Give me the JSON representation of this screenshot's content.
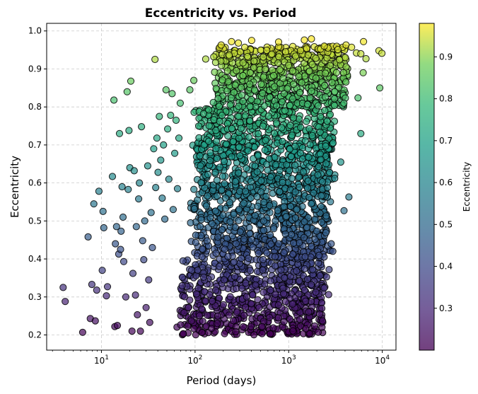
{
  "chart_data": {
    "type": "scatter",
    "title": "Eccentricity vs. Period",
    "xlabel": "Period (days)",
    "ylabel": "Eccentricity",
    "x_scale": "log",
    "xlim": [
      2.6,
      14000
    ],
    "ylim": [
      0.16,
      1.02
    ],
    "x_ticks": [
      {
        "value": 10,
        "label": "10^1"
      },
      {
        "value": 100,
        "label": "10^2"
      },
      {
        "value": 1000,
        "label": "10^3"
      },
      {
        "value": 10000,
        "label": "10^4"
      }
    ],
    "y_ticks": [
      0.2,
      0.3,
      0.4,
      0.5,
      0.6,
      0.7,
      0.8,
      0.9,
      1.0
    ],
    "y_tick_labels": [
      "0.2",
      "0.3",
      "0.4",
      "0.5",
      "0.6",
      "0.7",
      "0.8",
      "0.9",
      "1.0"
    ],
    "grid": true,
    "grid_style": "dashed",
    "colormap": "viridis",
    "marker_alpha": 0.7,
    "marker_edgecolor": "#000000",
    "colorbar": {
      "label": "Eccentricity",
      "range": [
        0.2,
        0.98
      ],
      "ticks": [
        0.3,
        0.4,
        0.5,
        0.6,
        0.7,
        0.8,
        0.9
      ],
      "tick_labels": [
        "0.3",
        "0.4",
        "0.5",
        "0.6",
        "0.7",
        "0.8",
        "0.9"
      ]
    },
    "points": [
      {
        "x": 3.9,
        "y": 0.325
      },
      {
        "x": 4.1,
        "y": 0.288
      },
      {
        "x": 6.3,
        "y": 0.207
      },
      {
        "x": 7.2,
        "y": 0.458
      },
      {
        "x": 7.6,
        "y": 0.243
      },
      {
        "x": 7.9,
        "y": 0.333
      },
      {
        "x": 8.3,
        "y": 0.545
      },
      {
        "x": 8.6,
        "y": 0.237
      },
      {
        "x": 8.9,
        "y": 0.318
      },
      {
        "x": 9.4,
        "y": 0.578
      },
      {
        "x": 10.2,
        "y": 0.37
      },
      {
        "x": 10.4,
        "y": 0.525
      },
      {
        "x": 10.6,
        "y": 0.482
      },
      {
        "x": 11.3,
        "y": 0.303
      },
      {
        "x": 11.6,
        "y": 0.327
      },
      {
        "x": 13.1,
        "y": 0.617
      },
      {
        "x": 13.6,
        "y": 0.818
      },
      {
        "x": 13.9,
        "y": 0.222
      },
      {
        "x": 14.1,
        "y": 0.44
      },
      {
        "x": 14.5,
        "y": 0.485
      },
      {
        "x": 14.8,
        "y": 0.225
      },
      {
        "x": 15.3,
        "y": 0.413
      },
      {
        "x": 15.6,
        "y": 0.73
      },
      {
        "x": 16.0,
        "y": 0.425
      },
      {
        "x": 16.2,
        "y": 0.473
      },
      {
        "x": 16.6,
        "y": 0.59
      },
      {
        "x": 17.0,
        "y": 0.51
      },
      {
        "x": 17.3,
        "y": 0.393
      },
      {
        "x": 18.2,
        "y": 0.3
      },
      {
        "x": 18.8,
        "y": 0.84
      },
      {
        "x": 19.3,
        "y": 0.583
      },
      {
        "x": 19.7,
        "y": 0.738
      },
      {
        "x": 20.1,
        "y": 0.64
      },
      {
        "x": 20.6,
        "y": 0.868
      },
      {
        "x": 21.2,
        "y": 0.21
      },
      {
        "x": 21.7,
        "y": 0.362
      },
      {
        "x": 22.4,
        "y": 0.632
      },
      {
        "x": 23.1,
        "y": 0.305
      },
      {
        "x": 23.6,
        "y": 0.485
      },
      {
        "x": 24.2,
        "y": 0.253
      },
      {
        "x": 25.0,
        "y": 0.558
      },
      {
        "x": 25.4,
        "y": 0.6
      },
      {
        "x": 26.1,
        "y": 0.21
      },
      {
        "x": 26.8,
        "y": 0.748
      },
      {
        "x": 27.6,
        "y": 0.448
      },
      {
        "x": 28.3,
        "y": 0.398
      },
      {
        "x": 29.0,
        "y": 0.5
      },
      {
        "x": 30.0,
        "y": 0.272
      },
      {
        "x": 31.2,
        "y": 0.645
      },
      {
        "x": 32.0,
        "y": 0.345
      },
      {
        "x": 32.8,
        "y": 0.233
      },
      {
        "x": 33.9,
        "y": 0.522
      },
      {
        "x": 35.0,
        "y": 0.43
      },
      {
        "x": 36.2,
        "y": 0.69
      },
      {
        "x": 37.3,
        "y": 0.925
      },
      {
        "x": 38.0,
        "y": 0.588
      },
      {
        "x": 39.1,
        "y": 0.718
      },
      {
        "x": 40.2,
        "y": 0.628
      },
      {
        "x": 41.5,
        "y": 0.775
      },
      {
        "x": 43.0,
        "y": 0.66
      },
      {
        "x": 44.6,
        "y": 0.56
      },
      {
        "x": 46.0,
        "y": 0.7
      },
      {
        "x": 47.5,
        "y": 0.505
      },
      {
        "x": 49.0,
        "y": 0.845
      },
      {
        "x": 51.0,
        "y": 0.742
      },
      {
        "x": 52.5,
        "y": 0.61
      },
      {
        "x": 54.8,
        "y": 0.778
      },
      {
        "x": 56.9,
        "y": 0.835
      },
      {
        "x": 58.4,
        "y": 0.53
      },
      {
        "x": 60.6,
        "y": 0.678
      },
      {
        "x": 62.7,
        "y": 0.765
      },
      {
        "x": 64.9,
        "y": 0.585
      },
      {
        "x": 67.2,
        "y": 0.718
      },
      {
        "x": 69.5,
        "y": 0.81
      },
      {
        "x": 88.0,
        "y": 0.845
      },
      {
        "x": 97.0,
        "y": 0.87
      },
      {
        "x": 130.0,
        "y": 0.926
      },
      {
        "x": 190.0,
        "y": 0.963
      },
      {
        "x": 245.0,
        "y": 0.972
      },
      {
        "x": 290.0,
        "y": 0.968
      },
      {
        "x": 402.0,
        "y": 0.975
      },
      {
        "x": 780.0,
        "y": 0.971
      },
      {
        "x": 1470.0,
        "y": 0.976
      },
      {
        "x": 1750.0,
        "y": 0.979
      },
      {
        "x": 2400.0,
        "y": 0.96
      },
      {
        "x": 3350.0,
        "y": 0.951
      },
      {
        "x": 4100.0,
        "y": 0.963
      },
      {
        "x": 4700.0,
        "y": 0.957
      },
      {
        "x": 5300.0,
        "y": 0.942
      },
      {
        "x": 5900.0,
        "y": 0.94
      },
      {
        "x": 6300.0,
        "y": 0.972
      },
      {
        "x": 6700.0,
        "y": 0.927
      },
      {
        "x": 6250.0,
        "y": 0.89
      },
      {
        "x": 5500.0,
        "y": 0.824
      },
      {
        "x": 5900.0,
        "y": 0.73
      },
      {
        "x": 9200.0,
        "y": 0.948
      },
      {
        "x": 9900.0,
        "y": 0.941
      },
      {
        "x": 9400.0,
        "y": 0.85
      },
      {
        "x": 4400.0,
        "y": 0.563
      },
      {
        "x": 3900.0,
        "y": 0.527
      },
      {
        "x": 3600.0,
        "y": 0.655
      },
      {
        "x": 3100.0,
        "y": 0.612
      },
      {
        "x": 2700.0,
        "y": 0.372
      },
      {
        "x": 2300.0,
        "y": 0.237
      },
      {
        "x": 2150.0,
        "y": 0.255
      }
    ],
    "dense_clusters": [
      {
        "x_range": [
          40,
          2700
        ],
        "y_range": [
          0.2,
          0.4
        ]
      },
      {
        "x_range": [
          55,
          3000
        ],
        "y_range": [
          0.4,
          0.6
        ]
      },
      {
        "x_range": [
          60,
          3300
        ],
        "y_range": [
          0.6,
          0.8
        ]
      },
      {
        "x_range": [
          100,
          4500
        ],
        "y_range": [
          0.8,
          0.96
        ]
      }
    ]
  }
}
